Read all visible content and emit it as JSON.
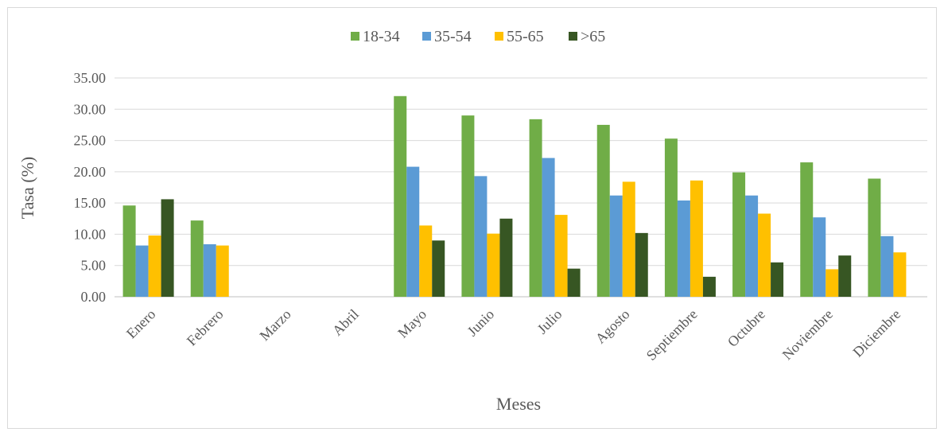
{
  "chart_data": {
    "type": "bar",
    "categories": [
      "Enero",
      "Febrero",
      "Marzo",
      "Abril",
      "Mayo",
      "Junio",
      "Julio",
      "Agosto",
      "Septiembre",
      "Octubre",
      "Noviembre",
      "Diciembre"
    ],
    "series": [
      {
        "name": "18-34",
        "color": "#70ad47",
        "values": [
          14.6,
          12.2,
          null,
          null,
          32.1,
          29.0,
          28.4,
          27.5,
          25.3,
          19.9,
          21.5,
          18.9
        ]
      },
      {
        "name": "35-54",
        "color": "#5b9bd5",
        "values": [
          8.2,
          8.4,
          null,
          null,
          20.8,
          19.3,
          22.2,
          16.2,
          15.4,
          16.2,
          12.7,
          9.7
        ]
      },
      {
        "name": "55-65",
        "color": "#ffc000",
        "values": [
          9.8,
          8.2,
          null,
          null,
          11.4,
          10.1,
          13.1,
          18.4,
          18.6,
          13.3,
          4.4,
          7.1
        ]
      },
      {
        "name": ">65",
        "color": "#375623",
        "values": [
          15.6,
          null,
          null,
          null,
          9.0,
          12.5,
          4.5,
          10.2,
          3.2,
          5.5,
          6.6,
          null
        ]
      }
    ],
    "xlabel": "Meses",
    "ylabel": "Tasa (%)",
    "ylim": [
      0,
      35
    ],
    "yticks": [
      "0.00",
      "5.00",
      "10.00",
      "15.00",
      "20.00",
      "25.00",
      "30.00",
      "35.00"
    ],
    "grid": true,
    "legend_position": "top"
  }
}
